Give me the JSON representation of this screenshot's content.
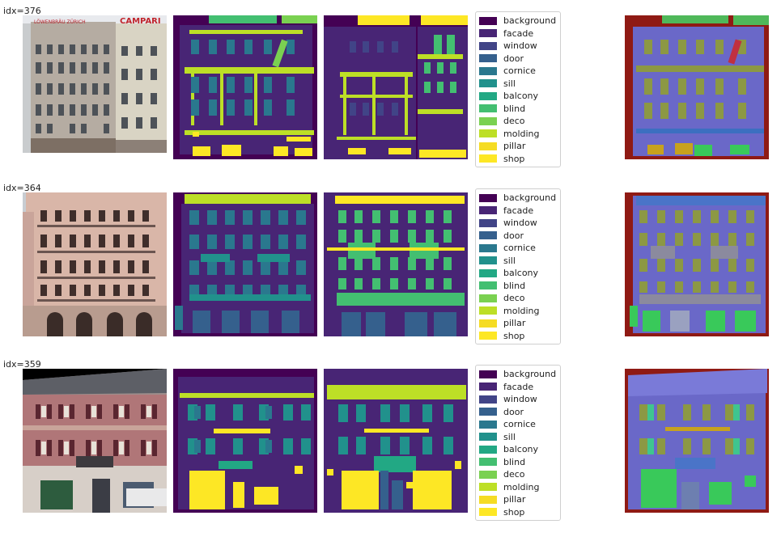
{
  "rows": [
    {
      "index_label": "idx=376",
      "photo_text": [
        "LÖWENBRÄU ZÜRICH",
        "CAMPARI"
      ]
    },
    {
      "index_label": "idx=364"
    },
    {
      "index_label": "idx=359"
    }
  ],
  "classes": [
    "background",
    "facade",
    "window",
    "door",
    "cornice",
    "sill",
    "balcony",
    "blind",
    "deco",
    "molding",
    "pillar",
    "shop"
  ],
  "colors": {
    "background": "#440154",
    "facade": "#482575",
    "window": "#414487",
    "door": "#35608d",
    "cornice": "#2a788e",
    "sill": "#21918c",
    "balcony": "#22a884",
    "blind": "#43bf71",
    "deco": "#7ad151",
    "molding": "#bddf26",
    "pillar": "#f5dc24",
    "shop": "#fde725"
  }
}
